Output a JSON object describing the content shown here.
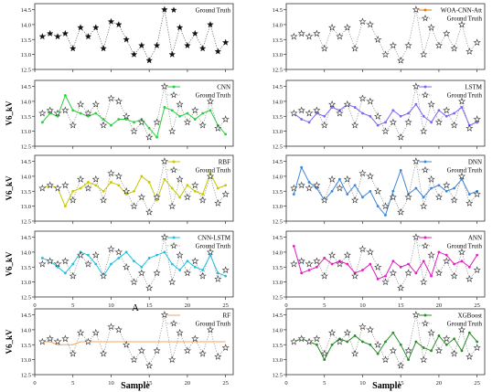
{
  "figure": {
    "bottom_caption": "A",
    "xlabel_left": "Sample",
    "xlabel_right": "Sample",
    "ground_truth_label": "Ground Truth"
  },
  "chart_data": [
    {
      "type": "line",
      "model": "",
      "ylabel": "V6_kV",
      "show_ylabel": false,
      "xlim": [
        0,
        26
      ],
      "ylim": [
        12.5,
        14.7
      ],
      "yticks": [
        12.5,
        13.0,
        13.5,
        14.0,
        14.5
      ],
      "xticks": [
        0,
        5,
        10,
        15,
        20,
        25
      ],
      "show_xticks": false,
      "legend": "top-right",
      "color": "#000000",
      "marker": "none",
      "series": [
        {
          "name": "Ground Truth",
          "values": []
        }
      ]
    },
    {
      "type": "line",
      "model": "WOA-CNN-Att",
      "ylabel": "V6_kV",
      "show_ylabel": false,
      "xlim": [
        0,
        26
      ],
      "ylim": [
        12.5,
        14.7
      ],
      "yticks": [
        12.5,
        13.0,
        13.5,
        14.0,
        14.5
      ],
      "xticks": [
        0,
        5,
        10,
        15,
        20,
        25
      ],
      "show_xticks": false,
      "legend": "top-right",
      "color": "#e07b00",
      "marker": "circle",
      "series": [
        {
          "name": "WOA-CNN-Att",
          "values": []
        },
        {
          "name": "Ground Truth",
          "values": []
        }
      ]
    },
    {
      "type": "line",
      "model": "CNN",
      "ylabel": "V6_kV",
      "show_ylabel": true,
      "xlim": [
        0,
        26
      ],
      "ylim": [
        12.5,
        14.7
      ],
      "yticks": [
        12.5,
        13.0,
        13.5,
        14.0,
        14.5
      ],
      "xticks": [
        0,
        5,
        10,
        15,
        20,
        25
      ],
      "show_xticks": false,
      "legend": "top-right",
      "color": "#2ecc40",
      "marker": "circle",
      "series": [
        {
          "name": "CNN",
          "values": [
            13.3,
            13.6,
            13.5,
            14.2,
            13.7,
            13.6,
            13.5,
            13.6,
            13.4,
            13.2,
            13.4,
            13.4,
            13.3,
            13.4,
            13.1,
            12.8,
            13.8,
            13.7,
            13.5,
            13.6,
            13.4,
            13.6,
            13.7,
            13.2,
            12.9
          ]
        },
        {
          "name": "Ground Truth",
          "values": []
        }
      ]
    },
    {
      "type": "line",
      "model": "LSTM",
      "ylabel": "V6_kV",
      "show_ylabel": false,
      "xlim": [
        0,
        26
      ],
      "ylim": [
        12.5,
        14.7
      ],
      "yticks": [
        12.5,
        13.0,
        13.5,
        14.0,
        14.5
      ],
      "xticks": [
        0,
        5,
        10,
        15,
        20,
        25
      ],
      "show_xticks": false,
      "legend": "top-right",
      "color": "#7b68ee",
      "marker": "circle",
      "series": [
        {
          "name": "LSTM",
          "values": [
            13.6,
            13.4,
            13.3,
            13.6,
            13.5,
            13.8,
            13.7,
            13.9,
            13.8,
            13.6,
            13.5,
            13.2,
            13.3,
            13.7,
            13.5,
            13.6,
            13.9,
            13.5,
            13.3,
            13.7,
            13.5,
            13.6,
            13.8,
            13.2,
            13.3
          ]
        },
        {
          "name": "Ground Truth",
          "values": []
        }
      ]
    },
    {
      "type": "line",
      "model": "RBF",
      "ylabel": "V6_kV",
      "show_ylabel": true,
      "xlim": [
        0,
        26
      ],
      "ylim": [
        12.5,
        14.7
      ],
      "yticks": [
        12.5,
        13.0,
        13.5,
        14.0,
        14.5
      ],
      "xticks": [
        0,
        5,
        10,
        15,
        20,
        25
      ],
      "show_xticks": false,
      "legend": "top-right",
      "color": "#c8c800",
      "marker": "circle",
      "series": [
        {
          "name": "RBF",
          "values": [
            13.6,
            13.7,
            13.6,
            13.0,
            13.5,
            13.6,
            13.8,
            13.7,
            13.5,
            13.8,
            13.7,
            13.4,
            13.5,
            14.0,
            13.8,
            13.2,
            13.9,
            13.6,
            13.3,
            13.7,
            13.5,
            13.4,
            14.1,
            13.6,
            13.7
          ]
        },
        {
          "name": "Ground Truth",
          "values": []
        }
      ]
    },
    {
      "type": "line",
      "model": "DNN",
      "ylabel": "V6_kV",
      "show_ylabel": false,
      "xlim": [
        0,
        26
      ],
      "ylim": [
        12.5,
        14.7
      ],
      "yticks": [
        12.5,
        13.0,
        13.5,
        14.0,
        14.5
      ],
      "xticks": [
        0,
        5,
        10,
        15,
        20,
        25
      ],
      "show_xticks": false,
      "legend": "top-right",
      "color": "#3f87d6",
      "marker": "circle",
      "series": [
        {
          "name": "DNN",
          "values": [
            13.4,
            14.3,
            13.8,
            13.6,
            13.2,
            13.5,
            13.9,
            13.4,
            13.7,
            13.3,
            13.5,
            13.0,
            12.7,
            13.5,
            14.2,
            13.4,
            13.6,
            13.3,
            13.6,
            13.7,
            13.5,
            13.6,
            13.9,
            13.4,
            13.5
          ]
        },
        {
          "name": "Ground Truth",
          "values": []
        }
      ]
    },
    {
      "type": "line",
      "model": "CNN-LSTM",
      "ylabel": "V6_kV",
      "show_ylabel": true,
      "xlim": [
        0,
        26
      ],
      "ylim": [
        12.5,
        14.7
      ],
      "yticks": [
        12.5,
        13.0,
        13.5,
        14.0,
        14.5
      ],
      "xticks": [
        0,
        5,
        10,
        15,
        20,
        25
      ],
      "show_xticks": true,
      "legend": "top-right",
      "color": "#1fc1e0",
      "marker": "circle",
      "series": [
        {
          "name": "CNN-LSTM",
          "values": [
            13.8,
            13.7,
            13.5,
            13.3,
            13.6,
            14.0,
            13.9,
            13.6,
            13.2,
            13.6,
            13.8,
            14.0,
            13.7,
            13.5,
            13.8,
            13.9,
            14.0,
            13.6,
            13.4,
            13.7,
            13.5,
            13.4,
            13.9,
            13.3,
            13.2
          ]
        },
        {
          "name": "Ground Truth",
          "values": []
        }
      ]
    },
    {
      "type": "line",
      "model": "ANN",
      "ylabel": "V6_kV",
      "show_ylabel": false,
      "xlim": [
        0,
        26
      ],
      "ylim": [
        12.5,
        14.7
      ],
      "yticks": [
        12.5,
        13.0,
        13.5,
        14.0,
        14.5
      ],
      "xticks": [
        0,
        5,
        10,
        15,
        20,
        25
      ],
      "show_xticks": true,
      "legend": "top-right",
      "color": "#e020c0",
      "marker": "circle",
      "series": [
        {
          "name": "ANN",
          "values": [
            14.2,
            13.3,
            13.4,
            13.5,
            13.8,
            13.6,
            13.7,
            13.6,
            13.3,
            13.4,
            13.6,
            13.1,
            13.2,
            13.7,
            13.5,
            13.6,
            13.3,
            13.7,
            13.2,
            14.0,
            13.9,
            13.6,
            13.7,
            13.5,
            13.9
          ]
        },
        {
          "name": "Ground Truth",
          "values": []
        }
      ]
    },
    {
      "type": "line",
      "model": "RF",
      "ylabel": "V6_kV",
      "show_ylabel": true,
      "xlim": [
        0,
        26
      ],
      "ylim": [
        12.5,
        14.7
      ],
      "yticks": [
        12.5,
        13.0,
        13.5,
        14.0,
        14.5
      ],
      "xticks": [
        0,
        5,
        10,
        15,
        20,
        25
      ],
      "show_xticks": true,
      "legend": "top-right",
      "color": "#f4a460",
      "marker": "none",
      "series": [
        {
          "name": "RF",
          "values": [
            13.6,
            13.6,
            13.5,
            13.5,
            13.5,
            13.6,
            13.6,
            13.6,
            13.6,
            13.6,
            13.6,
            13.6,
            13.6,
            13.6,
            13.6,
            13.6,
            13.6,
            13.6,
            13.6,
            13.6,
            13.6,
            13.6,
            13.6,
            13.6,
            13.6
          ]
        },
        {
          "name": "Ground Truth",
          "values": []
        }
      ]
    },
    {
      "type": "line",
      "model": "XGBoost",
      "ylabel": "V6_kV",
      "show_ylabel": false,
      "xlim": [
        0,
        26
      ],
      "ylim": [
        12.5,
        14.7
      ],
      "yticks": [
        12.5,
        13.0,
        13.5,
        14.0,
        14.5
      ],
      "xticks": [
        0,
        5,
        10,
        15,
        20,
        25
      ],
      "show_xticks": true,
      "legend": "top-right",
      "color": "#2e8b2e",
      "marker": "circle",
      "series": [
        {
          "name": "XGBoost",
          "values": [
            13.6,
            13.7,
            13.6,
            13.5,
            13.0,
            13.5,
            13.7,
            13.6,
            13.8,
            13.6,
            13.5,
            13.2,
            13.6,
            13.9,
            13.5,
            13.0,
            13.6,
            13.4,
            13.3,
            13.8,
            13.5,
            13.7,
            13.3,
            13.9,
            13.6
          ]
        },
        {
          "name": "Ground Truth",
          "values": []
        }
      ]
    }
  ],
  "ground_truth": [
    13.6,
    13.7,
    13.6,
    13.7,
    13.2,
    13.9,
    13.6,
    13.9,
    13.2,
    14.1,
    14.0,
    13.5,
    13.0,
    13.3,
    12.8,
    13.3,
    14.5,
    13.0,
    13.9,
    13.3,
    13.7,
    13.2,
    14.0,
    13.1,
    13.4
  ]
}
